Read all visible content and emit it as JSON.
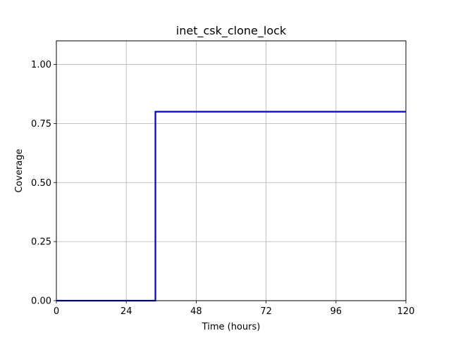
{
  "chart_data": {
    "type": "line",
    "title": "inet_csk_clone_lock",
    "xlabel": "Time (hours)",
    "ylabel": "Coverage",
    "xlim": [
      0,
      120
    ],
    "ylim": [
      0,
      1.1
    ],
    "xticks": [
      0,
      24,
      48,
      72,
      96,
      120
    ],
    "xtick_labels": [
      "0",
      "24",
      "48",
      "72",
      "96",
      "120"
    ],
    "yticks": [
      0,
      0.25,
      0.5,
      0.75,
      1.0
    ],
    "ytick_labels": [
      "0.00",
      "0.25",
      "0.50",
      "0.75",
      "1.00"
    ],
    "grid": true,
    "legend": "none",
    "series": [
      {
        "color": "#0000cc",
        "step": "post",
        "x": [
          0,
          34,
          34,
          120
        ],
        "y": [
          0,
          0,
          0.8,
          0.8
        ]
      }
    ]
  }
}
